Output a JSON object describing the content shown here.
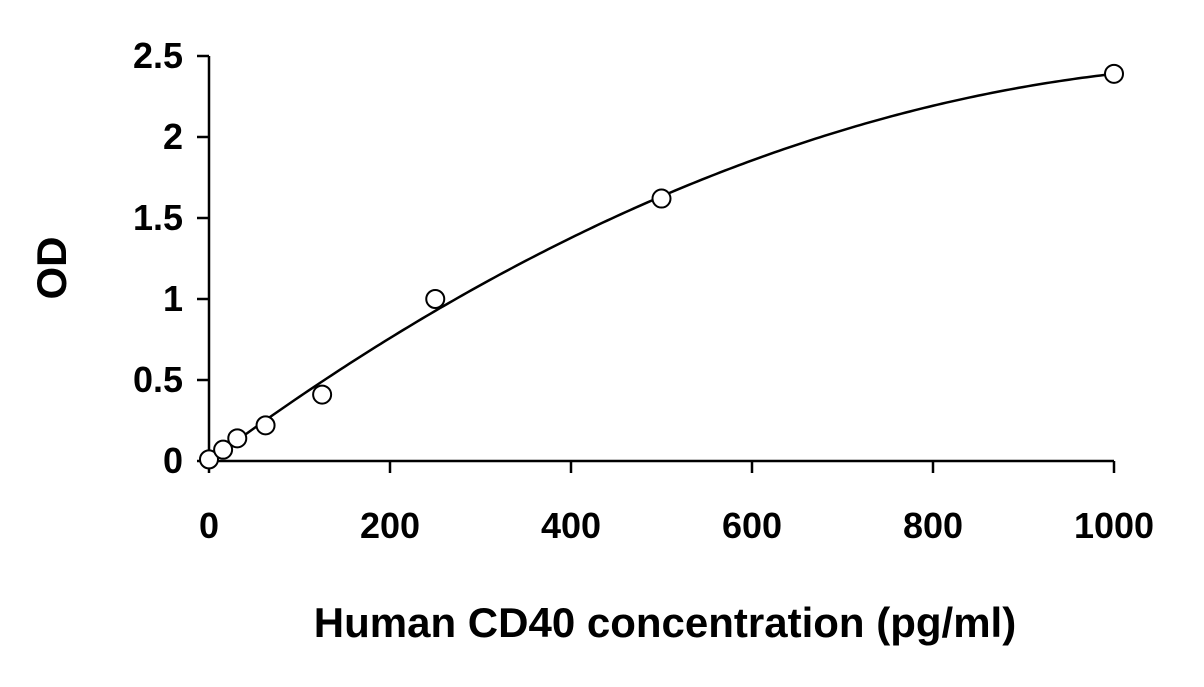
{
  "chart_data": {
    "type": "scatter",
    "title": "",
    "xlabel": "Human CD40 concentration (pg/ml)",
    "ylabel": "OD",
    "xlim": [
      0,
      1000
    ],
    "ylim": [
      0,
      2.5
    ],
    "x_ticks": [
      0,
      200,
      400,
      600,
      800,
      1000
    ],
    "y_ticks": [
      0,
      0.5,
      1,
      1.5,
      2,
      2.5
    ],
    "x_tick_labels": [
      "0",
      "200",
      "400",
      "600",
      "800",
      "1000"
    ],
    "y_tick_labels": [
      "0",
      "0.5",
      "1",
      "1.5",
      "2",
      "2.5"
    ],
    "grid": false,
    "legend": "none",
    "series": [
      {
        "x": [
          0,
          15.6,
          31.25,
          62.5,
          125,
          250,
          500,
          1000
        ],
        "y": [
          0.01,
          0.07,
          0.14,
          0.22,
          0.41,
          1.0,
          1.62,
          2.39
        ],
        "marker": "open-circle",
        "fit_curve": true
      }
    ]
  }
}
